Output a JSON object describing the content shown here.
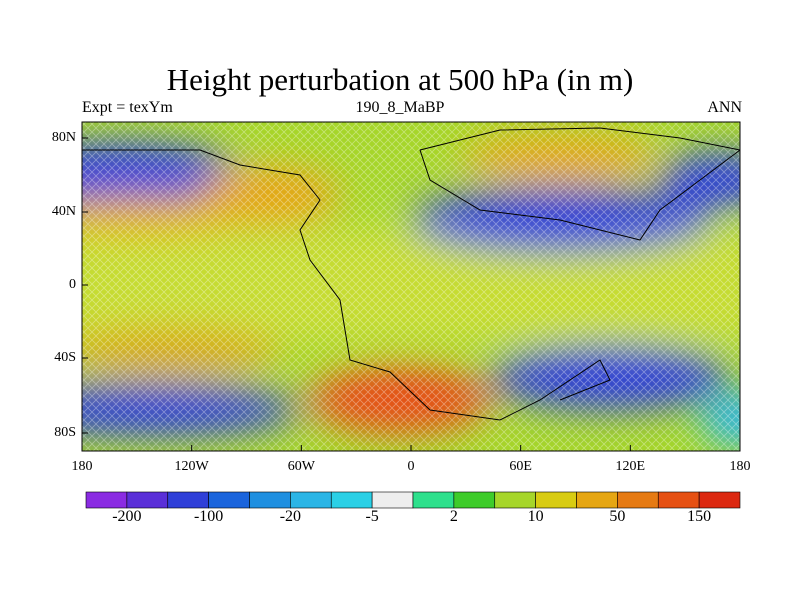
{
  "title": "Height perturbation at 500 hPa (in m)",
  "left_label": "Expt = texYm",
  "center_label": "190_8_MaBP",
  "right_label": "ANN",
  "chart_data": {
    "type": "heatmap",
    "title": "Height perturbation at 500 hPa (in m)",
    "units": "m",
    "x_ticks": [
      "180",
      "120W",
      "60W",
      "0",
      "60E",
      "120E",
      "180"
    ],
    "x_range": [
      -180,
      180
    ],
    "y_ticks": [
      "80N",
      "40N",
      "0",
      "40S",
      "80S"
    ],
    "y_range": [
      -90,
      90
    ],
    "colorbar": {
      "labels": [
        "-200",
        "-100",
        "-20",
        "-5",
        "2",
        "10",
        "50",
        "150"
      ],
      "colors": [
        "#8a2be2",
        "#5a2fd8",
        "#2f3fd8",
        "#1a64dc",
        "#1f8fe0",
        "#2bb5e6",
        "#2bd0e6",
        "#eeeeee",
        "#2ee08c",
        "#3ecc2a",
        "#a6d62a",
        "#d8cc12",
        "#e6a612",
        "#e67a12",
        "#e65012",
        "#dc2810"
      ]
    },
    "field_regions": [
      {
        "label": "high",
        "lon": -15,
        "lat": -65,
        "value": 150
      },
      {
        "label": "high",
        "lon": 95,
        "lat": 68,
        "value": 60
      },
      {
        "label": "high",
        "lon": -65,
        "lat": 50,
        "value": 40
      },
      {
        "label": "high",
        "lon": -165,
        "lat": 38,
        "value": 40
      },
      {
        "label": "high",
        "lon": -150,
        "lat": -38,
        "value": 20
      },
      {
        "label": "low",
        "lon": -150,
        "lat": 67,
        "value": -100
      },
      {
        "label": "low",
        "lon": 95,
        "lat": 38,
        "value": -100
      },
      {
        "label": "low",
        "lon": 110,
        "lat": -48,
        "value": -100
      },
      {
        "label": "low",
        "lon": -165,
        "lat": -65,
        "value": -100
      }
    ]
  }
}
